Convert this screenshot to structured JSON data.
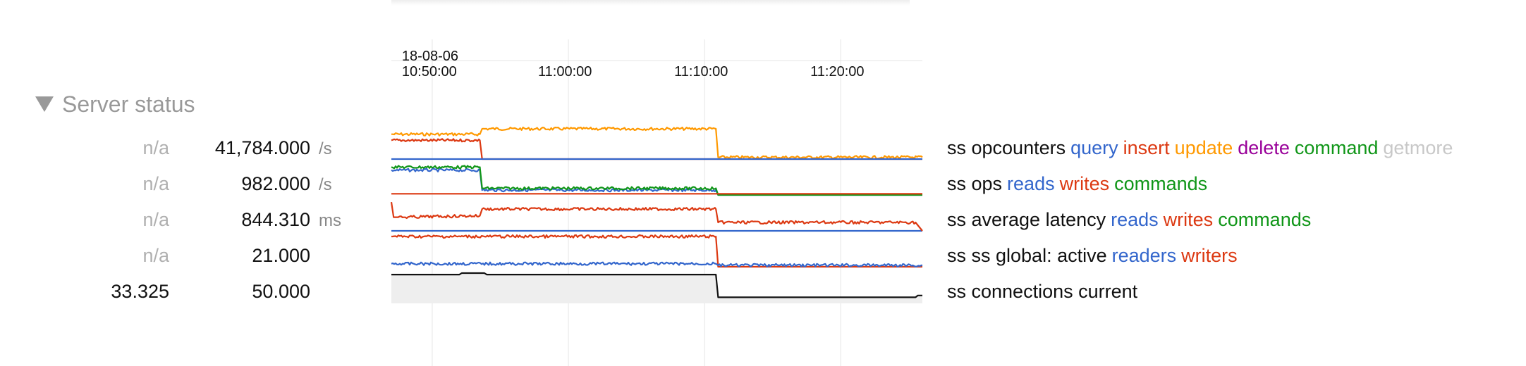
{
  "section": {
    "title": "Server status",
    "expanded": true
  },
  "time_axis": {
    "labels": [
      "18-08-06\n10:50:00",
      "11:00:00",
      "11:10:00",
      "11:20:00"
    ]
  },
  "rows": [
    {
      "current": "n/a",
      "max": "41,784.000",
      "unit": "/s",
      "legend": [
        {
          "text": "ss opcounters",
          "color": "#111111"
        },
        {
          "text": "query",
          "color": "#3366cc"
        },
        {
          "text": "insert",
          "color": "#dc3912"
        },
        {
          "text": "update",
          "color": "#ff9900"
        },
        {
          "text": "delete",
          "color": "#990099"
        },
        {
          "text": "command",
          "color": "#109618"
        },
        {
          "text": "getmore",
          "color": "#c8c8c8"
        }
      ]
    },
    {
      "current": "n/a",
      "max": "982.000",
      "unit": "/s",
      "legend": [
        {
          "text": "ss ops",
          "color": "#111111"
        },
        {
          "text": "reads",
          "color": "#3366cc"
        },
        {
          "text": "writes",
          "color": "#dc3912"
        },
        {
          "text": "commands",
          "color": "#109618"
        }
      ]
    },
    {
      "current": "n/a",
      "max": "844.310",
      "unit": "ms",
      "legend": [
        {
          "text": "ss average latency",
          "color": "#111111"
        },
        {
          "text": "reads",
          "color": "#3366cc"
        },
        {
          "text": "writes",
          "color": "#dc3912"
        },
        {
          "text": "commands",
          "color": "#109618"
        }
      ]
    },
    {
      "current": "n/a",
      "max": "21.000",
      "unit": "",
      "legend": [
        {
          "text": "ss ss global: active",
          "color": "#111111"
        },
        {
          "text": "readers",
          "color": "#3366cc"
        },
        {
          "text": "writers",
          "color": "#dc3912"
        }
      ]
    },
    {
      "current": "33.325",
      "max": "50.000",
      "unit": "",
      "legend": [
        {
          "text": "ss connections current",
          "color": "#111111"
        }
      ]
    }
  ],
  "chart_data": {
    "type": "line",
    "x_range": [
      "10:47:00",
      "11:26:00"
    ],
    "x_ticks": [
      "10:50:00",
      "11:00:00",
      "11:10:00",
      "11:20:00"
    ],
    "panels": [
      {
        "series": [
          {
            "color": "#ff9900",
            "x": [
              "10:47:00",
              "10:53:30",
              "10:53:40",
              "11:10:50",
              "11:11:00",
              "11:26:00"
            ],
            "y": [
              0.82,
              0.82,
              1.0,
              1.0,
              0.06,
              0.06
            ],
            "noisy": true
          },
          {
            "color": "#dc3912",
            "x": [
              "10:47:00",
              "10:53:30",
              "10:53:40",
              "11:26:00"
            ],
            "y": [
              0.62,
              0.62,
              0.0,
              0.0
            ],
            "noisy": true
          },
          {
            "color": "#3366cc",
            "x": [
              "10:47:00",
              "11:26:00"
            ],
            "y": [
              0.0,
              0.0
            ]
          }
        ]
      },
      {
        "series": [
          {
            "color": "#3366cc",
            "x": [
              "10:47:00",
              "10:53:30",
              "10:53:40",
              "11:10:50",
              "11:11:00",
              "11:26:00"
            ],
            "y": [
              0.82,
              0.82,
              0.16,
              0.16,
              0.0,
              0.0
            ],
            "noisy": true
          },
          {
            "color": "#109618",
            "x": [
              "10:47:00",
              "10:53:30",
              "10:53:40",
              "11:10:50",
              "11:11:00",
              "11:26:00"
            ],
            "y": [
              0.92,
              0.92,
              0.22,
              0.22,
              0.0,
              0.0
            ],
            "noisy": true
          },
          {
            "color": "#dc3912",
            "x": [
              "10:47:00",
              "11:26:00"
            ],
            "y": [
              0.04,
              0.04
            ]
          }
        ]
      },
      {
        "series": [
          {
            "color": "#3366cc",
            "x": [
              "10:47:00",
              "11:26:00"
            ],
            "y": [
              0.0,
              0.0
            ]
          },
          {
            "color": "#dc3912",
            "x": [
              "10:47:00",
              "10:47:10",
              "10:47:30",
              "10:53:30",
              "10:53:40",
              "11:10:50",
              "11:11:00",
              "11:25:30",
              "11:26:00"
            ],
            "y": [
              0.95,
              0.45,
              0.45,
              0.5,
              0.72,
              0.72,
              0.28,
              0.28,
              0.0
            ],
            "noisy": true
          }
        ]
      },
      {
        "series": [
          {
            "color": "#dc3912",
            "x": [
              "10:47:00",
              "11:10:50",
              "11:11:00",
              "11:26:00"
            ],
            "y": [
              1.0,
              1.0,
              0.0,
              0.0
            ],
            "noisy": true
          },
          {
            "color": "#3366cc",
            "x": [
              "10:47:00",
              "11:10:50",
              "11:11:00",
              "11:26:00"
            ],
            "y": [
              0.1,
              0.1,
              0.05,
              0.05
            ],
            "noisy": true
          }
        ]
      },
      {
        "area": true,
        "series": [
          {
            "color": "#111111",
            "x": [
              "10:47:00",
              "10:52:00",
              "10:52:10",
              "10:53:50",
              "10:54:00",
              "11:10:50",
              "11:11:00",
              "11:25:30",
              "11:25:40",
              "11:26:00"
            ],
            "y": [
              0.95,
              0.95,
              1.0,
              1.0,
              0.95,
              0.95,
              0.2,
              0.2,
              0.26,
              0.26
            ]
          }
        ]
      }
    ]
  }
}
